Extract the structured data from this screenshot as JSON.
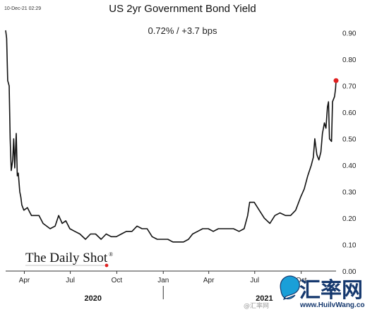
{
  "timestamp": "10-Dec-21 02:29",
  "title": "US 2yr Government Bond Yield",
  "subtitle": "0.72%  /  +3.7 bps",
  "branding": {
    "source_logo": "The Daily Shot",
    "source_logo_mark": "®"
  },
  "watermark": {
    "name": "汇率网",
    "url": "www.HuilvWang.com",
    "weibo": "@汇率网"
  },
  "colors": {
    "line": "#111111",
    "last_point": "#e02020",
    "background": "#ffffff"
  },
  "chart_data": {
    "type": "line",
    "title": "US 2yr Government Bond Yield",
    "subtitle": "0.72%  /  +3.7 bps",
    "xlabel": "",
    "ylabel": "",
    "ylim": [
      0,
      0.95
    ],
    "y_axis_side": "right",
    "y_ticks": [
      0.0,
      0.1,
      0.2,
      0.3,
      0.4,
      0.5,
      0.6,
      0.7,
      0.8,
      0.9
    ],
    "y_tick_labels": [
      "0.00",
      "0.10",
      "0.20",
      "0.30",
      "0.40",
      "0.50",
      "0.60",
      "0.70",
      "0.80",
      "0.90"
    ],
    "x_ticks": [
      {
        "label": "Apr",
        "date": "2020-04-01"
      },
      {
        "label": "Jul",
        "date": "2020-07-01"
      },
      {
        "label": "Oct",
        "date": "2020-10-01"
      },
      {
        "label": "Jan",
        "date": "2021-01-01"
      },
      {
        "label": "Apr",
        "date": "2021-04-01"
      },
      {
        "label": "Jul",
        "date": "2021-07-01"
      },
      {
        "label": "Oct",
        "date": "2021-10-01"
      }
    ],
    "year_labels": [
      {
        "label": "2020",
        "date": "2020-08-15"
      },
      {
        "label": "2021",
        "date": "2021-07-20"
      }
    ],
    "year_divider_date": "2021-01-01",
    "series": [
      {
        "x": [
          "2020-02-24",
          "2020-02-26",
          "2020-02-28",
          "2020-03-02",
          "2020-03-04",
          "2020-03-06",
          "2020-03-09",
          "2020-03-11",
          "2020-03-13",
          "2020-03-16",
          "2020-03-18",
          "2020-03-20",
          "2020-03-23",
          "2020-03-25",
          "2020-03-27",
          "2020-03-31",
          "2020-04-07",
          "2020-04-15",
          "2020-04-22",
          "2020-04-30",
          "2020-05-08",
          "2020-05-15",
          "2020-05-22",
          "2020-06-01",
          "2020-06-08",
          "2020-06-15",
          "2020-06-22",
          "2020-06-30",
          "2020-07-10",
          "2020-07-20",
          "2020-07-31",
          "2020-08-10",
          "2020-08-20",
          "2020-08-31",
          "2020-09-10",
          "2020-09-20",
          "2020-09-30",
          "2020-10-10",
          "2020-10-20",
          "2020-10-31",
          "2020-11-10",
          "2020-11-20",
          "2020-11-30",
          "2020-12-10",
          "2020-12-20",
          "2020-12-31",
          "2021-01-10",
          "2021-01-20",
          "2021-01-31",
          "2021-02-10",
          "2021-02-20",
          "2021-02-28",
          "2021-03-10",
          "2021-03-20",
          "2021-03-31",
          "2021-04-10",
          "2021-04-20",
          "2021-04-30",
          "2021-05-10",
          "2021-05-20",
          "2021-05-31",
          "2021-06-10",
          "2021-06-17",
          "2021-06-21",
          "2021-06-30",
          "2021-07-10",
          "2021-07-20",
          "2021-07-31",
          "2021-08-10",
          "2021-08-20",
          "2021-08-31",
          "2021-09-10",
          "2021-09-20",
          "2021-09-30",
          "2021-10-07",
          "2021-10-14",
          "2021-10-21",
          "2021-10-25",
          "2021-10-28",
          "2021-11-01",
          "2021-11-05",
          "2021-11-09",
          "2021-11-12",
          "2021-11-16",
          "2021-11-19",
          "2021-11-22",
          "2021-11-24",
          "2021-11-26",
          "2021-11-30",
          "2021-12-02",
          "2021-12-06",
          "2021-12-08",
          "2021-12-09"
        ],
        "y": [
          0.91,
          0.88,
          0.72,
          0.7,
          0.5,
          0.38,
          0.42,
          0.5,
          0.39,
          0.52,
          0.36,
          0.37,
          0.3,
          0.28,
          0.25,
          0.23,
          0.24,
          0.21,
          0.21,
          0.21,
          0.18,
          0.17,
          0.16,
          0.17,
          0.21,
          0.18,
          0.19,
          0.16,
          0.15,
          0.14,
          0.12,
          0.14,
          0.14,
          0.12,
          0.14,
          0.13,
          0.13,
          0.14,
          0.15,
          0.15,
          0.17,
          0.16,
          0.16,
          0.13,
          0.12,
          0.12,
          0.12,
          0.11,
          0.11,
          0.11,
          0.12,
          0.14,
          0.15,
          0.16,
          0.16,
          0.15,
          0.16,
          0.16,
          0.16,
          0.16,
          0.15,
          0.16,
          0.21,
          0.26,
          0.26,
          0.23,
          0.2,
          0.18,
          0.21,
          0.22,
          0.21,
          0.21,
          0.23,
          0.28,
          0.31,
          0.36,
          0.4,
          0.43,
          0.5,
          0.44,
          0.42,
          0.45,
          0.52,
          0.56,
          0.54,
          0.62,
          0.64,
          0.5,
          0.49,
          0.64,
          0.66,
          0.69,
          0.72
        ]
      }
    ],
    "last_value": 0.72,
    "last_value_label": "0.72%",
    "change_label": "+3.7 bps",
    "grid": false,
    "legend": "none"
  }
}
